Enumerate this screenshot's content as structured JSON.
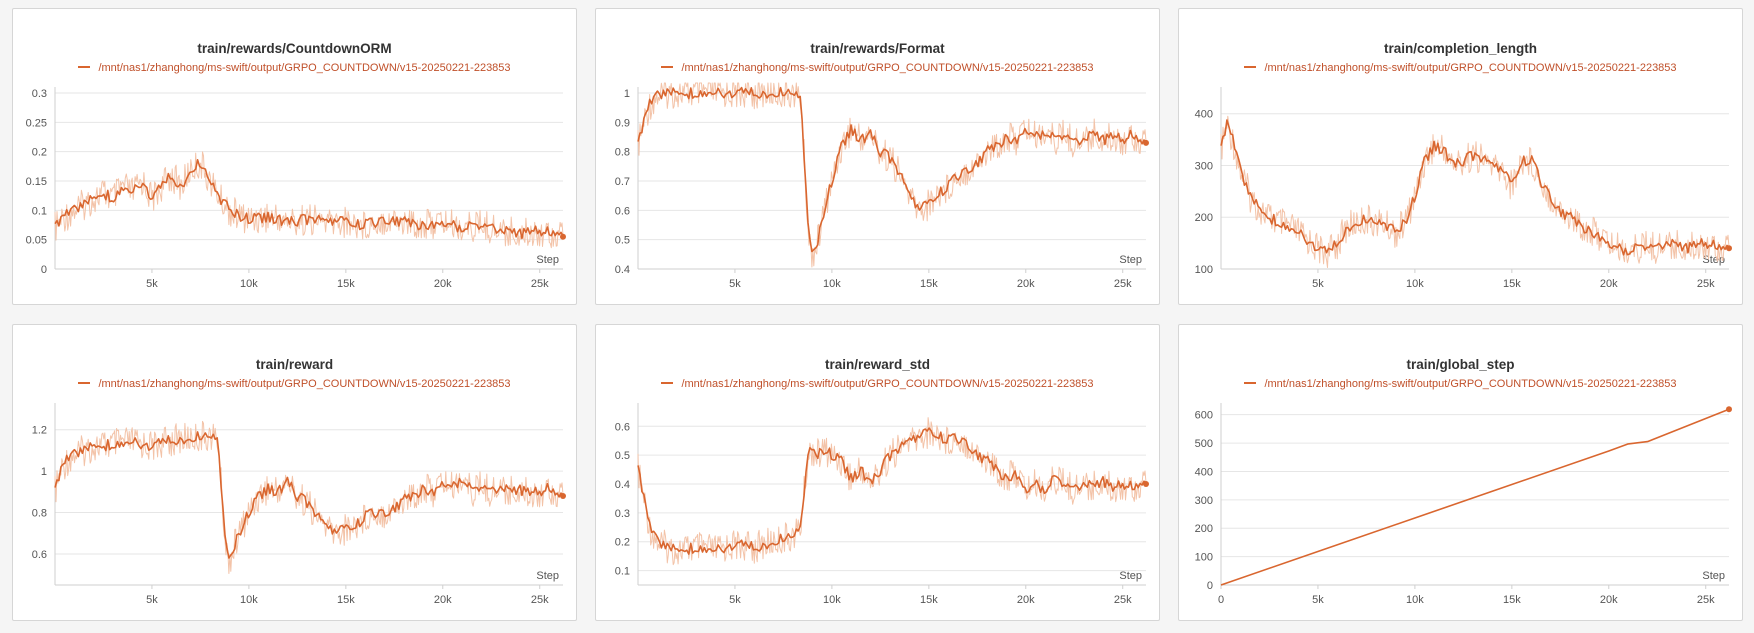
{
  "colors": {
    "series": "#d9662f",
    "series_light": "#f3c3a8",
    "legend_text": "#c0502a",
    "grid": "#e6e6e6"
  },
  "legend_icon": "line-swatch-icon",
  "chart_data": [
    {
      "type": "line",
      "title": "train/rewards/CountdownORM",
      "legend": "/mnt/nas1/zhanghong/ms-swift/output/GRPO_COUNTDOWN/v15-20250221-223853",
      "xlabel": "Step",
      "xlim": [
        0,
        26200
      ],
      "ylim": [
        0,
        0.3
      ],
      "xticks": [
        5000,
        10000,
        15000,
        20000,
        25000
      ],
      "xtick_labels": [
        "5k",
        "10k",
        "15k",
        "20k",
        "25k"
      ],
      "yticks": [
        0,
        0.05,
        0.1,
        0.15,
        0.2,
        0.25,
        0.3
      ],
      "ytick_labels": [
        "0",
        "0.05",
        "0.1",
        "0.15",
        "0.2",
        "0.25",
        "0.3"
      ],
      "series": [
        {
          "x": [
            0,
            500,
            1000,
            1500,
            2000,
            2500,
            3000,
            3500,
            4000,
            4500,
            5000,
            5500,
            6000,
            6500,
            7000,
            7500,
            8000,
            8500,
            9000,
            9500,
            10000,
            11000,
            12000,
            13000,
            14000,
            15000,
            16000,
            17000,
            18000,
            19000,
            20000,
            21000,
            22000,
            23000,
            24000,
            25000,
            26000,
            26200
          ],
          "values": [
            0.07,
            0.09,
            0.1,
            0.11,
            0.12,
            0.13,
            0.12,
            0.14,
            0.13,
            0.15,
            0.12,
            0.14,
            0.16,
            0.14,
            0.17,
            0.18,
            0.15,
            0.12,
            0.1,
            0.09,
            0.085,
            0.09,
            0.08,
            0.085,
            0.08,
            0.08,
            0.075,
            0.085,
            0.08,
            0.075,
            0.08,
            0.07,
            0.075,
            0.065,
            0.06,
            0.065,
            0.06,
            0.055
          ]
        }
      ]
    },
    {
      "type": "line",
      "title": "train/rewards/Format",
      "legend": "/mnt/nas1/zhanghong/ms-swift/output/GRPO_COUNTDOWN/v15-20250221-223853",
      "xlabel": "Step",
      "xlim": [
        0,
        26200
      ],
      "ylim": [
        0.4,
        1
      ],
      "xticks": [
        5000,
        10000,
        15000,
        20000,
        25000
      ],
      "xtick_labels": [
        "5k",
        "10k",
        "15k",
        "20k",
        "25k"
      ],
      "yticks": [
        0.4,
        0.5,
        0.6,
        0.7,
        0.8,
        0.9,
        1
      ],
      "ytick_labels": [
        "0.4",
        "0.5",
        "0.6",
        "0.7",
        "0.8",
        "0.9",
        "1"
      ],
      "series": [
        {
          "x": [
            0,
            300,
            600,
            1000,
            1500,
            2000,
            3000,
            4000,
            5000,
            6000,
            7000,
            8000,
            8400,
            8600,
            8800,
            9000,
            9300,
            9600,
            10000,
            10500,
            11000,
            11500,
            12000,
            12500,
            13000,
            13500,
            14000,
            14500,
            15000,
            15500,
            16000,
            16500,
            17000,
            17500,
            18000,
            18500,
            19000,
            19500,
            20000,
            20500,
            21000,
            21500,
            22000,
            22500,
            23000,
            23500,
            24000,
            24500,
            25000,
            25500,
            26000,
            26200
          ],
          "values": [
            0.82,
            0.9,
            0.96,
            0.99,
            1,
            1,
            1,
            1,
            1,
            1,
            1,
            1,
            0.98,
            0.75,
            0.5,
            0.45,
            0.5,
            0.6,
            0.7,
            0.82,
            0.88,
            0.84,
            0.86,
            0.8,
            0.78,
            0.72,
            0.65,
            0.6,
            0.62,
            0.66,
            0.68,
            0.72,
            0.74,
            0.76,
            0.8,
            0.82,
            0.85,
            0.84,
            0.88,
            0.85,
            0.87,
            0.84,
            0.86,
            0.83,
            0.84,
            0.86,
            0.84,
            0.85,
            0.84,
            0.86,
            0.83,
            0.83
          ]
        }
      ]
    },
    {
      "type": "line",
      "title": "train/completion_length",
      "legend": "/mnt/nas1/zhanghong/ms-swift/output/GRPO_COUNTDOWN/v15-20250221-223853",
      "xlabel": "Step",
      "xlim": [
        0,
        26200
      ],
      "ylim": [
        100,
        440
      ],
      "xticks": [
        5000,
        10000,
        15000,
        20000,
        25000
      ],
      "xtick_labels": [
        "5k",
        "10k",
        "15k",
        "20k",
        "25k"
      ],
      "yticks": [
        100,
        200,
        300,
        400
      ],
      "ytick_labels": [
        "100",
        "200",
        "300",
        "400"
      ],
      "series": [
        {
          "x": [
            0,
            300,
            600,
            1000,
            1500,
            2000,
            2500,
            3000,
            3500,
            4000,
            4500,
            5000,
            5500,
            6000,
            6500,
            7000,
            7500,
            8000,
            8500,
            9000,
            9500,
            10000,
            10500,
            11000,
            11500,
            12000,
            12500,
            13000,
            13500,
            14000,
            14500,
            15000,
            15500,
            16000,
            16500,
            17000,
            17500,
            18000,
            18500,
            19000,
            19500,
            20000,
            20500,
            21000,
            21500,
            22000,
            22500,
            23000,
            23500,
            24000,
            24500,
            25000,
            25500,
            26000,
            26200
          ],
          "values": [
            330,
            380,
            350,
            290,
            240,
            215,
            200,
            190,
            180,
            170,
            155,
            140,
            130,
            150,
            180,
            190,
            195,
            190,
            185,
            170,
            190,
            240,
            310,
            340,
            330,
            300,
            310,
            320,
            310,
            300,
            290,
            260,
            310,
            310,
            270,
            240,
            210,
            200,
            185,
            175,
            165,
            150,
            140,
            135,
            140,
            145,
            140,
            150,
            145,
            140,
            145,
            150,
            145,
            140,
            140
          ]
        }
      ]
    },
    {
      "type": "line",
      "title": "train/reward",
      "legend": "/mnt/nas1/zhanghong/ms-swift/output/GRPO_COUNTDOWN/v15-20250221-223853",
      "xlabel": "Step",
      "xlim": [
        0,
        26200
      ],
      "ylim": [
        0.45,
        1.3
      ],
      "xticks": [
        5000,
        10000,
        15000,
        20000,
        25000
      ],
      "xtick_labels": [
        "5k",
        "10k",
        "15k",
        "20k",
        "25k"
      ],
      "yticks": [
        0.6,
        0.8,
        1,
        1.2
      ],
      "ytick_labels": [
        "0.6",
        "0.8",
        "1",
        "1.2"
      ],
      "series": [
        {
          "x": [
            0,
            300,
            600,
            1000,
            1500,
            2000,
            3000,
            4000,
            5000,
            6000,
            7000,
            8000,
            8400,
            8600,
            8800,
            9000,
            9300,
            9600,
            10000,
            10500,
            11000,
            11500,
            12000,
            12500,
            13000,
            13500,
            14000,
            14500,
            15000,
            15500,
            16000,
            16500,
            17000,
            17500,
            18000,
            18500,
            19000,
            19500,
            20000,
            20500,
            21000,
            21500,
            22000,
            22500,
            23000,
            23500,
            24000,
            24500,
            25000,
            25500,
            26000,
            26200
          ],
          "values": [
            0.9,
            1.0,
            1.05,
            1.08,
            1.1,
            1.12,
            1.13,
            1.14,
            1.12,
            1.15,
            1.16,
            1.17,
            1.15,
            0.9,
            0.62,
            0.57,
            0.65,
            0.72,
            0.8,
            0.88,
            0.92,
            0.9,
            0.95,
            0.88,
            0.85,
            0.78,
            0.73,
            0.7,
            0.72,
            0.74,
            0.78,
            0.8,
            0.8,
            0.82,
            0.86,
            0.88,
            0.92,
            0.9,
            0.95,
            0.92,
            0.97,
            0.9,
            0.93,
            0.9,
            0.92,
            0.9,
            0.91,
            0.89,
            0.9,
            0.92,
            0.88,
            0.88
          ]
        }
      ]
    },
    {
      "type": "line",
      "title": "train/reward_std",
      "legend": "/mnt/nas1/zhanghong/ms-swift/output/GRPO_COUNTDOWN/v15-20250221-223853",
      "xlabel": "Step",
      "xlim": [
        0,
        26200
      ],
      "ylim": [
        0.05,
        0.66
      ],
      "xticks": [
        5000,
        10000,
        15000,
        20000,
        25000
      ],
      "xtick_labels": [
        "5k",
        "10k",
        "15k",
        "20k",
        "25k"
      ],
      "yticks": [
        0.1,
        0.2,
        0.3,
        0.4,
        0.5,
        0.6
      ],
      "ytick_labels": [
        "0.1",
        "0.2",
        "0.3",
        "0.4",
        "0.5",
        "0.6"
      ],
      "series": [
        {
          "x": [
            0,
            300,
            600,
            1000,
            1500,
            2000,
            3000,
            4000,
            5000,
            6000,
            7000,
            8000,
            8400,
            8600,
            8800,
            9000,
            9300,
            9600,
            10000,
            10500,
            11000,
            11500,
            12000,
            12500,
            13000,
            13500,
            14000,
            14500,
            15000,
            15500,
            16000,
            16500,
            17000,
            17500,
            18000,
            18500,
            19000,
            19500,
            20000,
            20500,
            21000,
            21500,
            22000,
            22500,
            23000,
            23500,
            24000,
            24500,
            25000,
            25500,
            26000,
            26200
          ],
          "values": [
            0.45,
            0.35,
            0.25,
            0.2,
            0.18,
            0.17,
            0.18,
            0.17,
            0.19,
            0.18,
            0.2,
            0.22,
            0.25,
            0.4,
            0.5,
            0.52,
            0.5,
            0.52,
            0.5,
            0.48,
            0.42,
            0.45,
            0.4,
            0.45,
            0.5,
            0.52,
            0.55,
            0.56,
            0.58,
            0.57,
            0.55,
            0.56,
            0.54,
            0.5,
            0.48,
            0.45,
            0.42,
            0.44,
            0.38,
            0.4,
            0.38,
            0.42,
            0.4,
            0.38,
            0.4,
            0.39,
            0.41,
            0.38,
            0.4,
            0.39,
            0.4,
            0.4
          ]
        }
      ]
    },
    {
      "type": "line",
      "title": "train/global_step",
      "legend": "/mnt/nas1/zhanghong/ms-swift/output/GRPO_COUNTDOWN/v15-20250221-223853",
      "xlabel": "Step",
      "xlim": [
        0,
        26200
      ],
      "ylim": [
        0,
        620
      ],
      "xticks": [
        0,
        5000,
        10000,
        15000,
        20000,
        25000
      ],
      "xtick_labels": [
        "0",
        "5k",
        "10k",
        "15k",
        "20k",
        "25k"
      ],
      "yticks": [
        0,
        100,
        200,
        300,
        400,
        500,
        600
      ],
      "ytick_labels": [
        "0",
        "100",
        "200",
        "300",
        "400",
        "500",
        "600"
      ],
      "series": [
        {
          "x": [
            0,
            5000,
            10000,
            15000,
            20000,
            21000,
            22000,
            26200
          ],
          "values": [
            0,
            118,
            236,
            354,
            472,
            497,
            505,
            619
          ]
        }
      ]
    }
  ]
}
